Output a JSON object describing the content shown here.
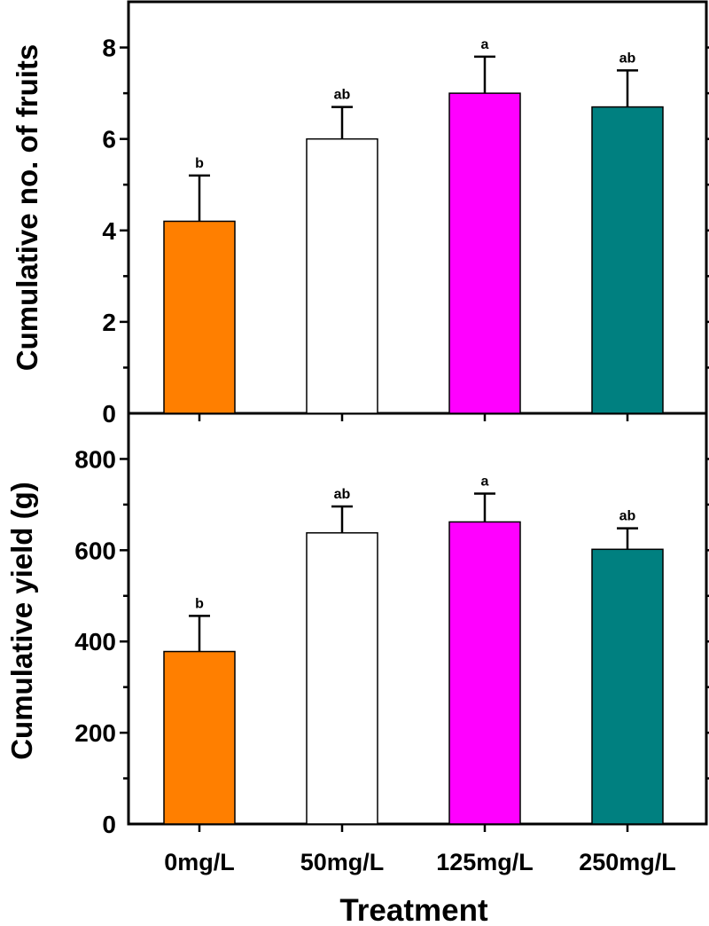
{
  "chart_data": [
    {
      "type": "bar",
      "categories": [
        "0mg/L",
        "50mg/L",
        "125mg/L",
        "250mg/L"
      ],
      "values": [
        4.2,
        6.0,
        7.0,
        6.7
      ],
      "errors": [
        1.0,
        0.7,
        0.8,
        0.8
      ],
      "significance_letters": [
        "b",
        "ab",
        "a",
        "ab"
      ],
      "colors": [
        "#ff7f00",
        "#ffffff",
        "#ff00ff",
        "#008080"
      ],
      "title": "",
      "xlabel": "",
      "ylabel": "Cumulative no. of fruits",
      "ylim": [
        0,
        9
      ],
      "yticks": [
        0,
        2,
        4,
        6,
        8
      ],
      "ytick_labels": [
        "0",
        "2",
        "4",
        "6",
        "8"
      ]
    },
    {
      "type": "bar",
      "categories": [
        "0mg/L",
        "50mg/L",
        "125mg/L",
        "250mg/L"
      ],
      "values": [
        378,
        638,
        662,
        602
      ],
      "errors": [
        78,
        58,
        62,
        46
      ],
      "significance_letters": [
        "b",
        "ab",
        "a",
        "ab"
      ],
      "colors": [
        "#ff7f00",
        "#ffffff",
        "#ff00ff",
        "#008080"
      ],
      "title": "",
      "xlabel": "Treatment",
      "ylabel": "Cumulative yield (g)",
      "ylim": [
        0,
        900
      ],
      "yticks": [
        0,
        200,
        400,
        600,
        800
      ],
      "ytick_labels": [
        "0",
        "200",
        "400",
        "600",
        "800"
      ]
    }
  ],
  "x_tick_labels": [
    "0mg/L",
    "50mg/L",
    "125mg/L",
    "250mg/L"
  ],
  "x_axis_label": "Treatment"
}
